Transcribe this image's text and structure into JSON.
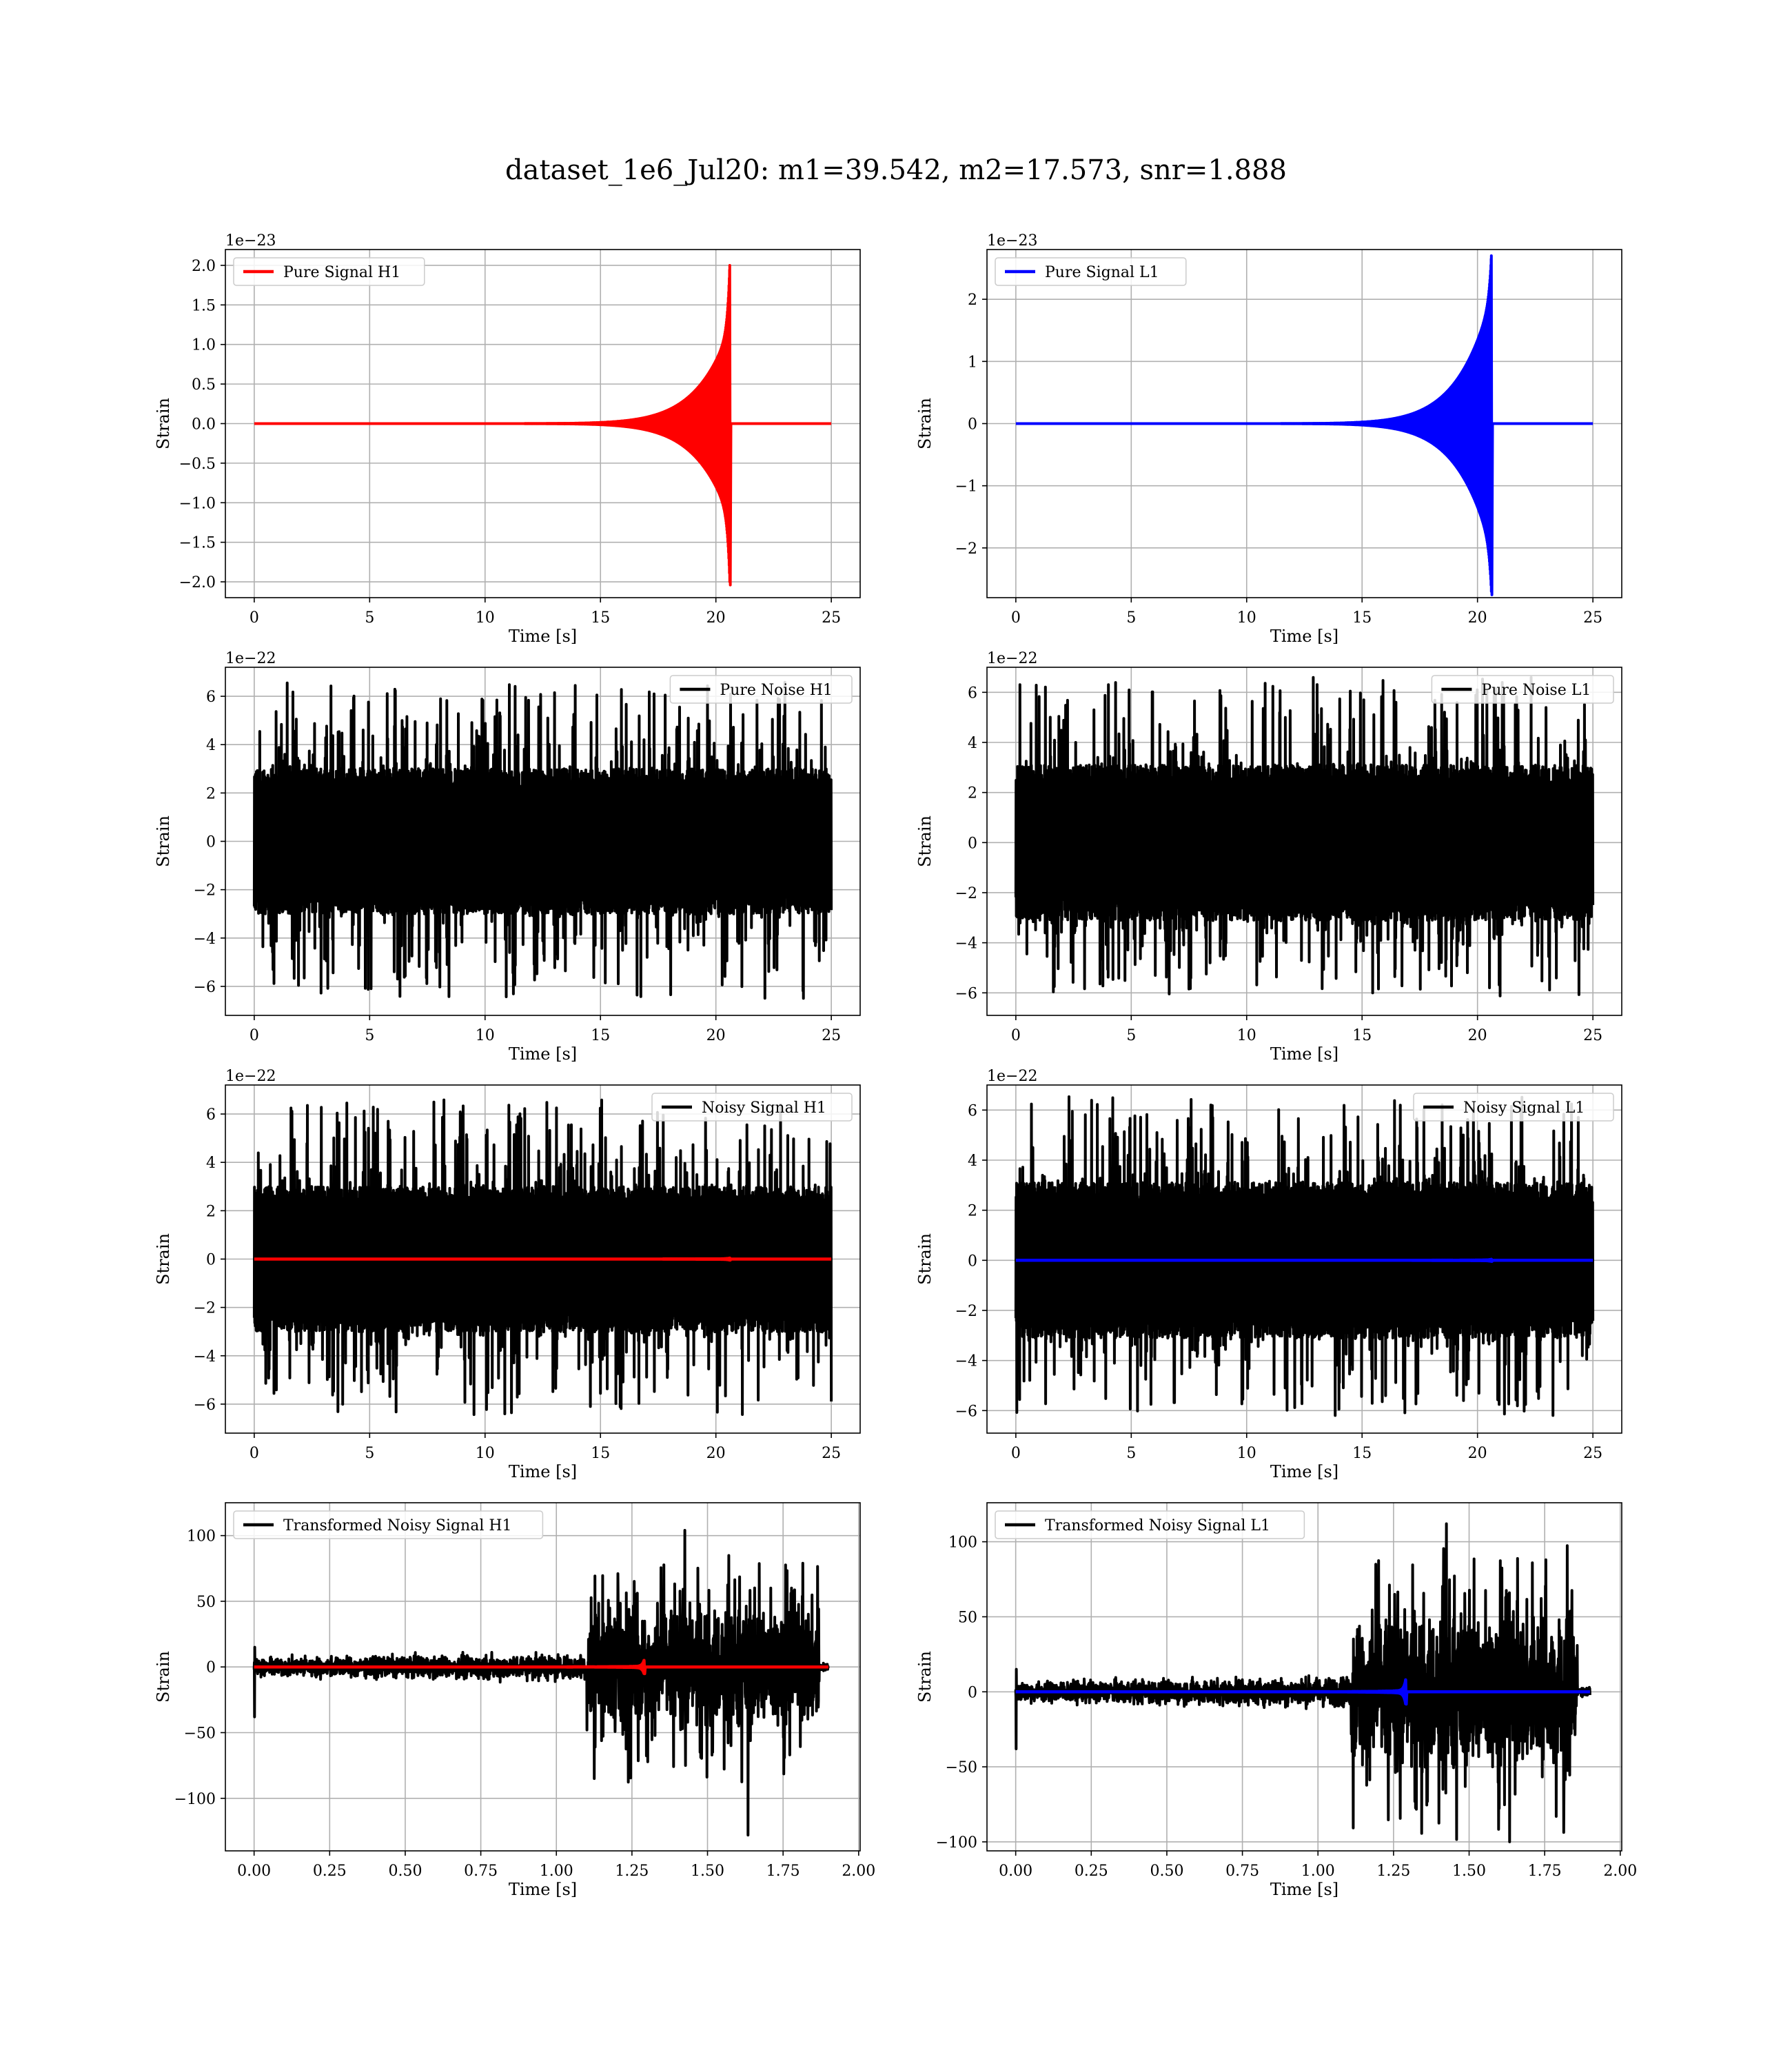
{
  "figure": {
    "title": "dataset_1e6_Jul20: m1=39.542, m2=17.573, snr=1.888"
  },
  "colors": {
    "h1_signal": "#ff0000",
    "l1_signal": "#0000ff",
    "noise": "#000000"
  },
  "chart_data": [
    {
      "id": "pure-signal-h1",
      "type": "line",
      "series": [
        {
          "name": "Pure Signal H1",
          "color": "#ff0000",
          "shape": "chirp",
          "t_merge": 20.6,
          "peak": 2.0,
          "sustain": 0.6
        }
      ],
      "xlabel": "Time [s]",
      "ylabel": "Strain",
      "offset_text": "1e−23",
      "xlim": [
        -1.25,
        26.25
      ],
      "ylim": [
        -2.2,
        2.2
      ],
      "xticks": [
        0,
        5,
        10,
        15,
        20,
        25
      ],
      "xtick_labels": [
        "0",
        "5",
        "10",
        "15",
        "20",
        "25"
      ],
      "yticks": [
        -2.0,
        -1.5,
        -1.0,
        -0.5,
        0.0,
        0.5,
        1.0,
        1.5,
        2.0
      ],
      "ytick_labels": [
        "−2.0",
        "−1.5",
        "−1.0",
        "−0.5",
        "0.0",
        "0.5",
        "1.0",
        "1.5",
        "2.0"
      ],
      "legend": "upper-left",
      "grid": true,
      "data_xrange": [
        0,
        25
      ]
    },
    {
      "id": "pure-signal-l1",
      "type": "line",
      "series": [
        {
          "name": "Pure Signal L1",
          "color": "#0000ff",
          "shape": "chirp",
          "t_merge": 20.6,
          "peak": 2.7,
          "sustain": 0.75
        }
      ],
      "xlabel": "Time [s]",
      "ylabel": "Strain",
      "offset_text": "1e−23",
      "xlim": [
        -1.25,
        26.25
      ],
      "ylim": [
        -2.8,
        2.8
      ],
      "xticks": [
        0,
        5,
        10,
        15,
        20,
        25
      ],
      "xtick_labels": [
        "0",
        "5",
        "10",
        "15",
        "20",
        "25"
      ],
      "yticks": [
        -2,
        -1,
        0,
        1,
        2
      ],
      "ytick_labels": [
        "−2",
        "−1",
        "0",
        "1",
        "2"
      ],
      "legend": "upper-left",
      "grid": true,
      "data_xrange": [
        0,
        25
      ]
    },
    {
      "id": "pure-noise-h1",
      "type": "line",
      "series": [
        {
          "name": "Pure Noise H1",
          "color": "#000000",
          "shape": "noise",
          "core": 3.0,
          "spike_max": 6.6,
          "spike_min": -6.5
        }
      ],
      "xlabel": "Time [s]",
      "ylabel": "Strain",
      "offset_text": "1e−22",
      "xlim": [
        -1.25,
        26.25
      ],
      "ylim": [
        -7.2,
        7.2
      ],
      "xticks": [
        0,
        5,
        10,
        15,
        20,
        25
      ],
      "xtick_labels": [
        "0",
        "5",
        "10",
        "15",
        "20",
        "25"
      ],
      "yticks": [
        -6,
        -4,
        -2,
        0,
        2,
        4,
        6
      ],
      "ytick_labels": [
        "−6",
        "−4",
        "−2",
        "0",
        "2",
        "4",
        "6"
      ],
      "legend": "upper-right",
      "grid": true,
      "data_xrange": [
        0,
        25
      ]
    },
    {
      "id": "pure-noise-l1",
      "type": "line",
      "series": [
        {
          "name": "Pure Noise L1",
          "color": "#000000",
          "shape": "noise",
          "core": 3.1,
          "spike_max": 6.6,
          "spike_min": -6.2
        }
      ],
      "xlabel": "Time [s]",
      "ylabel": "Strain",
      "offset_text": "1e−22",
      "xlim": [
        -1.25,
        26.25
      ],
      "ylim": [
        -6.9,
        7.0
      ],
      "xticks": [
        0,
        5,
        10,
        15,
        20,
        25
      ],
      "xtick_labels": [
        "0",
        "5",
        "10",
        "15",
        "20",
        "25"
      ],
      "yticks": [
        -6,
        -4,
        -2,
        0,
        2,
        4,
        6
      ],
      "ytick_labels": [
        "−6",
        "−4",
        "−2",
        "0",
        "2",
        "4",
        "6"
      ],
      "legend": "upper-right",
      "grid": true,
      "data_xrange": [
        0,
        25
      ]
    },
    {
      "id": "noisy-signal-h1",
      "type": "line",
      "series": [
        {
          "name": "Noisy Signal H1",
          "color": "#000000",
          "shape": "noise",
          "core": 3.0,
          "spike_max": 6.6,
          "spike_min": -6.5
        },
        {
          "color": "#ff0000",
          "shape": "chirp",
          "t_merge": 20.6,
          "peak": 0.04,
          "sustain": 0.3
        }
      ],
      "xlabel": "Time [s]",
      "ylabel": "Strain",
      "offset_text": "1e−22",
      "xlim": [
        -1.25,
        26.25
      ],
      "ylim": [
        -7.2,
        7.2
      ],
      "xticks": [
        0,
        5,
        10,
        15,
        20,
        25
      ],
      "xtick_labels": [
        "0",
        "5",
        "10",
        "15",
        "20",
        "25"
      ],
      "yticks": [
        -6,
        -4,
        -2,
        0,
        2,
        4,
        6
      ],
      "ytick_labels": [
        "−6",
        "−4",
        "−2",
        "0",
        "2",
        "4",
        "6"
      ],
      "legend": "upper-right",
      "grid": true,
      "data_xrange": [
        0,
        25
      ]
    },
    {
      "id": "noisy-signal-l1",
      "type": "line",
      "series": [
        {
          "name": "Noisy Signal L1",
          "color": "#000000",
          "shape": "noise",
          "core": 3.1,
          "spike_max": 6.6,
          "spike_min": -6.2
        },
        {
          "color": "#0000ff",
          "shape": "chirp",
          "t_merge": 20.6,
          "peak": 0.04,
          "sustain": 0.3
        }
      ],
      "xlabel": "Time [s]",
      "ylabel": "Strain",
      "offset_text": "1e−22",
      "xlim": [
        -1.25,
        26.25
      ],
      "ylim": [
        -6.9,
        7.0
      ],
      "xticks": [
        0,
        5,
        10,
        15,
        20,
        25
      ],
      "xtick_labels": [
        "0",
        "5",
        "10",
        "15",
        "20",
        "25"
      ],
      "yticks": [
        -6,
        -4,
        -2,
        0,
        2,
        4,
        6
      ],
      "ytick_labels": [
        "−6",
        "−4",
        "−2",
        "0",
        "2",
        "4",
        "6"
      ],
      "legend": "upper-right",
      "grid": true,
      "data_xrange": [
        0,
        25
      ]
    },
    {
      "id": "transformed-noisy-signal-h1",
      "type": "line",
      "series": [
        {
          "name": "Transformed Noisy Signal H1",
          "color": "#000000",
          "shape": "transformed",
          "t_end": 1.9,
          "t_jump": 1.1,
          "t_stop": 1.87,
          "low_amp": 7,
          "high_amp": 40,
          "spike_max": 104,
          "spike_min": -128
        },
        {
          "color": "#ff0000",
          "shape": "chirp",
          "t_merge": 1.29,
          "peak": 5,
          "sustain": 0.1,
          "x_end": 1.9
        }
      ],
      "xlabel": "Time [s]",
      "ylabel": "Strain",
      "offset_text": "",
      "xlim": [
        -0.095,
        2.005
      ],
      "ylim": [
        -140,
        125
      ],
      "xticks": [
        0,
        0.25,
        0.5,
        0.75,
        1.0,
        1.25,
        1.5,
        1.75,
        2.0
      ],
      "xtick_labels": [
        "0.00",
        "0.25",
        "0.50",
        "0.75",
        "1.00",
        "1.25",
        "1.50",
        "1.75",
        "2.00"
      ],
      "yticks": [
        -100,
        -50,
        0,
        50,
        100
      ],
      "ytick_labels": [
        "−100",
        "−50",
        "0",
        "50",
        "100"
      ],
      "legend": "upper-left",
      "grid": true,
      "data_xrange": [
        0,
        1.9
      ]
    },
    {
      "id": "transformed-noisy-signal-l1",
      "type": "line",
      "series": [
        {
          "name": "Transformed Noisy Signal L1",
          "color": "#000000",
          "shape": "transformed",
          "t_end": 1.9,
          "t_jump": 1.11,
          "t_stop": 1.86,
          "low_amp": 7,
          "high_amp": 45,
          "spike_max": 112,
          "spike_min": -100
        },
        {
          "color": "#0000ff",
          "shape": "chirp",
          "t_merge": 1.29,
          "peak": 8,
          "sustain": 0.1,
          "x_end": 1.9
        }
      ],
      "xlabel": "Time [s]",
      "ylabel": "Strain",
      "offset_text": "",
      "xlim": [
        -0.095,
        2.005
      ],
      "ylim": [
        -106,
        126
      ],
      "xticks": [
        0,
        0.25,
        0.5,
        0.75,
        1.0,
        1.25,
        1.5,
        1.75,
        2.0
      ],
      "xtick_labels": [
        "0.00",
        "0.25",
        "0.50",
        "0.75",
        "1.00",
        "1.25",
        "1.50",
        "1.75",
        "2.00"
      ],
      "yticks": [
        -100,
        -50,
        0,
        50,
        100
      ],
      "ytick_labels": [
        "−100",
        "−50",
        "0",
        "50",
        "100"
      ],
      "legend": "upper-left",
      "grid": true,
      "data_xrange": [
        0,
        1.9
      ]
    }
  ]
}
